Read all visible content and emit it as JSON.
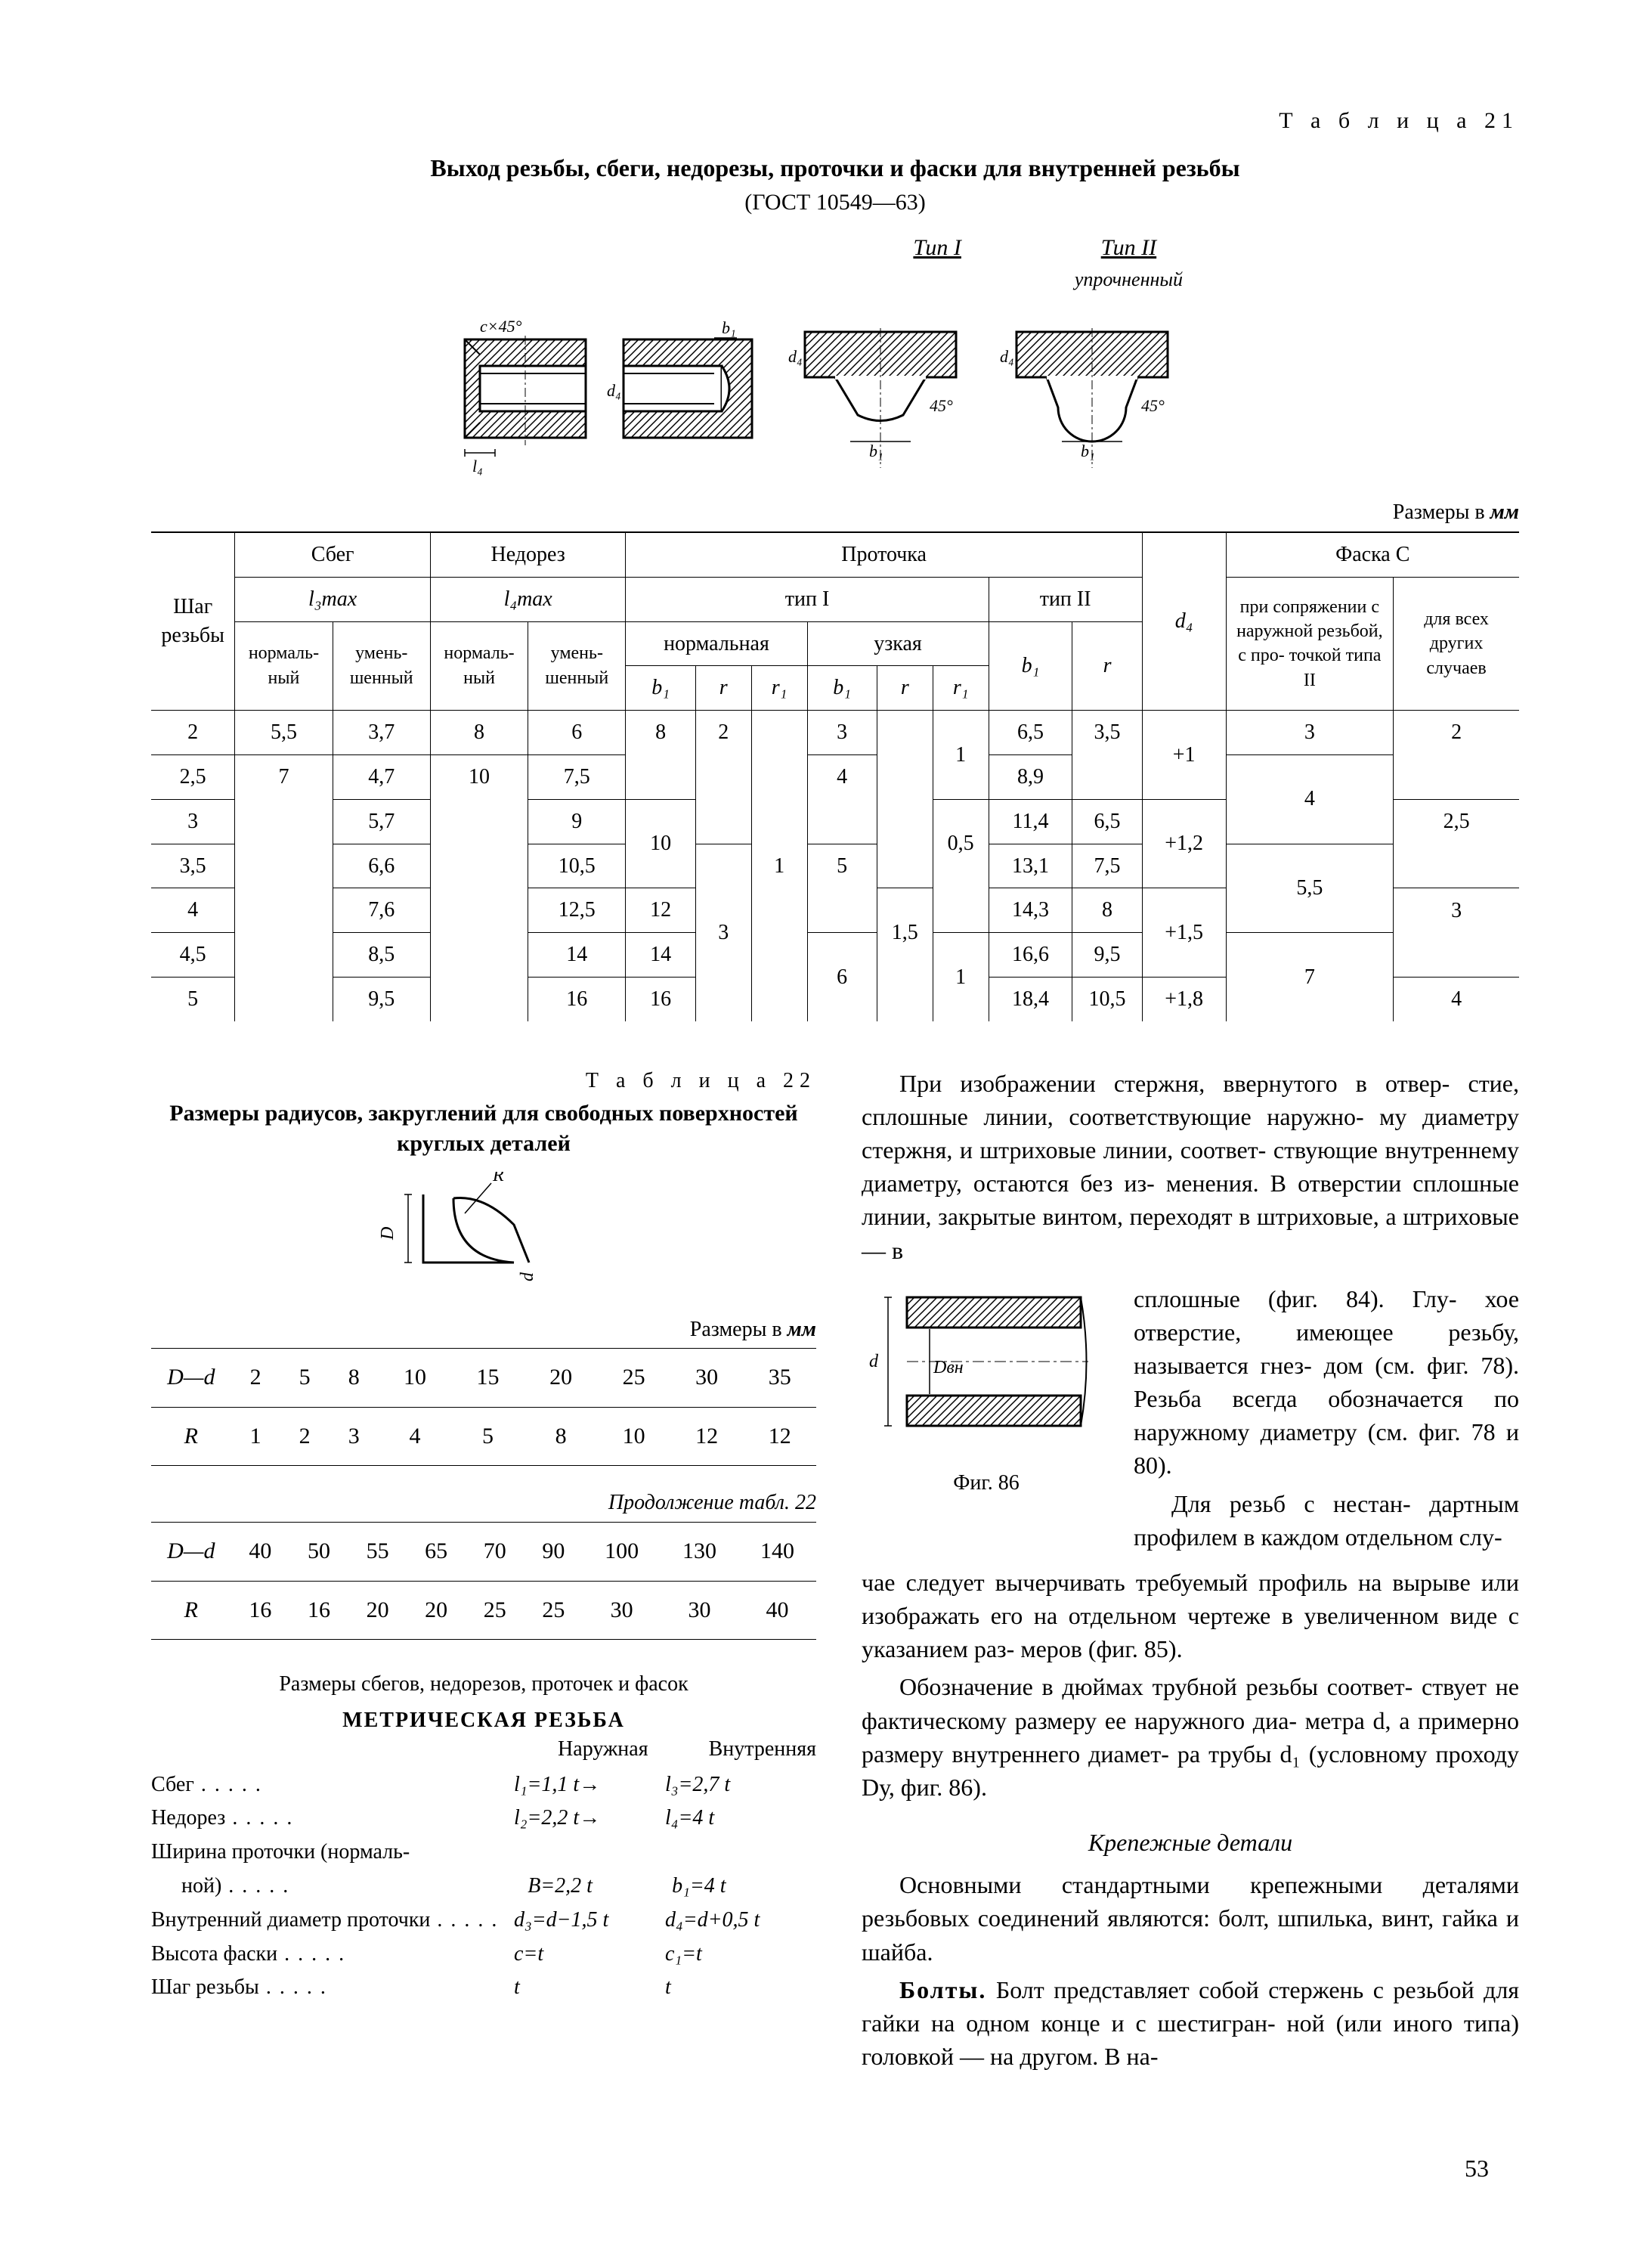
{
  "table21": {
    "tag": "Т а б л и ц а  21",
    "title": "Выход резьбы, сбеги, недорезы, проточки и фаски  для внутренней резьбы",
    "gost": "(ГОСТ 10549—63)",
    "diag_labels": {
      "tip1": "Тип I",
      "tip2": "Тип II",
      "tip2_sub": "упрочненный"
    },
    "units_prefix": "Размеры в ",
    "units_mm": "мм",
    "headers": {
      "step": "Шаг резьбы",
      "sbeg": "Сбег",
      "nedorez": "Недорез",
      "protochka": "Проточка",
      "faska": "Фаска C",
      "l3": "l₃max",
      "l4": "l₄max",
      "tip1h": "тип I",
      "tip2h": "тип II",
      "norm": "нормаль-\nный",
      "umen": "умень-\nшенный",
      "normalnaya": "нормальная",
      "uzkaya": "узкая",
      "b1": "b₁",
      "r": "r",
      "r1": "r₁",
      "b1b": "b₁",
      "rb": "r",
      "r1b": "r₁",
      "b1c": "b₁",
      "rc": "r",
      "d4": "d₄",
      "faska1": "при сопряжении с наружной резьбой, с про-\nточкой типа II",
      "faska2": "для всех других случаев"
    },
    "rows": [
      {
        "s": "2",
        "sbn": "5,5",
        "sbu": "3,7",
        "ndn": "8",
        "ndu": "6",
        "b1n": "8",
        "rn": "2",
        "r1n": "",
        "b1u": "3",
        "ru": "",
        "r1u": "1",
        "b1t": "6,5",
        "rt": "3,5",
        "d4": "+1",
        "f1": "3",
        "f2": "2"
      },
      {
        "s": "2,5",
        "sbn": "7",
        "sbu": "4,7",
        "ndn": "10",
        "ndu": "7,5",
        "b1n": "",
        "rn": "",
        "r1n": "",
        "b1u": "4",
        "ru": "",
        "r1u": "",
        "b1t": "8,9",
        "rt": "",
        "d4": "",
        "f1": "4",
        "f2": ""
      },
      {
        "s": "3",
        "sbn": "",
        "sbu": "5,7",
        "ndn": "",
        "ndu": "9",
        "b1n": "10",
        "rn": "",
        "r1n": "",
        "b1u": "",
        "ru": "",
        "r1u": "0,5",
        "b1t": "11,4",
        "rt": "6,5",
        "d4": "+1,2",
        "f1": "",
        "f2": "2,5"
      },
      {
        "s": "3,5",
        "sbn": "",
        "sbu": "6,6",
        "ndn": "",
        "ndu": "10,5",
        "b1n": "",
        "rn": "3",
        "r1n": "1",
        "b1u": "5",
        "ru": "",
        "r1u": "",
        "b1t": "13,1",
        "rt": "7,5",
        "d4": "",
        "f1": "5,5",
        "f2": ""
      },
      {
        "s": "4",
        "sbn": "",
        "sbu": "7,6",
        "ndn": "",
        "ndu": "12,5",
        "b1n": "12",
        "rn": "",
        "r1n": "",
        "b1u": "",
        "ru": "1,5",
        "r1u": "",
        "b1t": "14,3",
        "rt": "8",
        "d4": "+1,5",
        "f1": "",
        "f2": "3"
      },
      {
        "s": "4,5",
        "sbn": "",
        "sbu": "8,5",
        "ndn": "",
        "ndu": "14",
        "b1n": "14",
        "rn": "",
        "r1n": "",
        "b1u": "6",
        "ru": "",
        "r1u": "1",
        "b1t": "16,6",
        "rt": "9,5",
        "d4": "",
        "f1": "7",
        "f2": ""
      },
      {
        "s": "5",
        "sbn": "",
        "sbu": "9,5",
        "ndn": "",
        "ndu": "16",
        "b1n": "16",
        "rn": "",
        "r1n": "",
        "b1u": "",
        "ru": "",
        "r1u": "",
        "b1t": "18,4",
        "rt": "10,5",
        "d4": "+1,8",
        "f1": "",
        "f2": "4"
      }
    ]
  },
  "table22": {
    "tag": "Т а б л и ц а  22",
    "title": "Размеры радиусов, закруглений для свободных поверхностей круглых деталей",
    "units_prefix": "Размеры в ",
    "units_mm": "мм",
    "cont": "Продолжение табл. 22",
    "row1_h": "D—d",
    "row2_h": "R",
    "set1": {
      "Dd": [
        "2",
        "5",
        "8",
        "10",
        "15",
        "20",
        "25",
        "30",
        "35"
      ],
      "R": [
        "1",
        "2",
        "3",
        "4",
        "5",
        "8",
        "10",
        "12",
        "12"
      ]
    },
    "set2": {
      "Dd": [
        "40",
        "50",
        "55",
        "65",
        "70",
        "90",
        "100",
        "130",
        "140"
      ],
      "R": [
        "16",
        "16",
        "20",
        "20",
        "25",
        "25",
        "30",
        "30",
        "40"
      ]
    }
  },
  "formulas": {
    "title": "Размеры сбегов, недорезов, проточек и фасок",
    "metric": "МЕТРИЧЕСКАЯ РЕЗЬБА",
    "head1": "Наружная",
    "head2": "Внутренняя",
    "rows": [
      {
        "lab": "Сбег",
        "c1": "l₁=1,1 t→",
        "c2": "l₃=2,7 t"
      },
      {
        "lab": "Недорез",
        "c1": "l₂=2,2 t→",
        "c2": "l₄=4 t"
      },
      {
        "lab": "Ширина проточки (нормаль-",
        "c1": "",
        "c2": ""
      },
      {
        "lab": "ной)",
        "c1": "B=2,2 t",
        "c2": "b₁=4 t"
      },
      {
        "lab": "Внутренний диаметр проточки",
        "c1": "d₃=d−1,5 t",
        "c2": "d₄=d+0,5 t"
      },
      {
        "lab": "Высота фаски",
        "c1": "c=t",
        "c2": "c₁=t"
      },
      {
        "lab": "Шаг резьбы",
        "c1": "t",
        "c2": "t"
      }
    ]
  },
  "text": {
    "p1": "При изображении стержня, ввернутого в отвер-\nстие, сплошные линии, соответствующие наружно-\nму диаметру стержня, и штриховые линии, соответ-\nствующие внутреннему диаметру, остаются без из-\nменения. В отверстии сплошные линии, закрытые винтом, переходят в штриховые, а штриховые — в",
    "p2": "сплошные (фиг. 84). Глу-\nхое отверстие, имеющее резьбу, называется гнез-\nдом (см. фиг. 78). Резьба всегда обозначается по наружному диаметру (см. фиг. 78 и 80).",
    "p3": "Для резьб с нестан-\nдартным профилем в каждом отдельном слу-",
    "p4": "чае следует вычерчивать требуемый профиль на вырыве или изображать его на отдельном чертеже в увеличенном виде с указанием раз-\nмеров (фиг. 85).",
    "p5": "Обозначение в дюймах трубной резьбы соответ-\nствует не фактическому размеру ее наружного диа-\nметра d, а примерно размеру внутреннего диамет-\nра трубы d₁ (условному проходу Dу, фиг. 86).",
    "fig86": "Фиг. 86",
    "section": "Крепежные детали",
    "p6": "Основными стандартными крепежными деталями резьбовых соединений являются: болт, шпилька, винт, гайка и шайба.",
    "p7a": "Болты.",
    "p7b": " Болт представляет собой стержень с резьбой для гайки на одном конце и с шестигран-\nной (или иного типа) головкой — на другом. В на-"
  },
  "page_number": "53",
  "svg": {
    "hatch": "#000",
    "line": "#000"
  },
  "diag_annot": {
    "c45": "c×45°",
    "a45": "45°",
    "b1": "b₁",
    "l4": "l₄",
    "d": "d",
    "d4": "d₄",
    "Dw": "Dвн"
  }
}
